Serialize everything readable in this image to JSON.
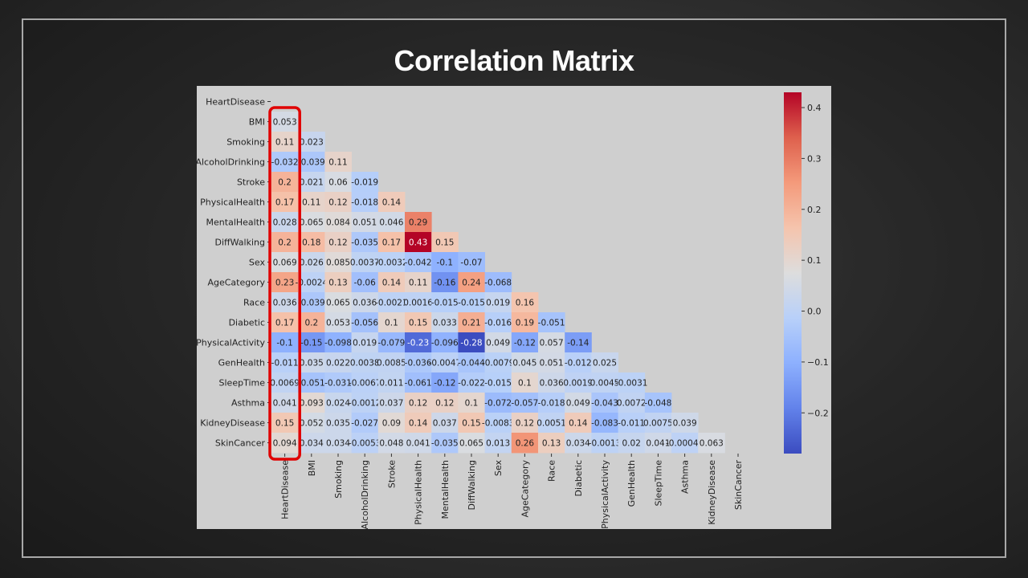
{
  "slide": {
    "title": "Correlation Matrix"
  },
  "chart_data": {
    "type": "heatmap",
    "title": "Correlation Matrix",
    "mask": "upper-triangle",
    "variables": [
      "HeartDisease",
      "BMI",
      "Smoking",
      "AlcoholDrinking",
      "Stroke",
      "PhysicalHealth",
      "MentalHealth",
      "DiffWalking",
      "Sex",
      "AgeCategory",
      "Race",
      "Diabetic",
      "PhysicalActivity",
      "GenHealth",
      "SleepTime",
      "Asthma",
      "KidneyDisease",
      "SkinCancer"
    ],
    "lower_triangle_labels": [
      [],
      [
        "0.053"
      ],
      [
        "0.11",
        "0.023"
      ],
      [
        "-0.032",
        "-0.039",
        "0.11"
      ],
      [
        "0.2",
        "0.021",
        "0.06",
        "-0.019"
      ],
      [
        "0.17",
        "0.11",
        "0.12",
        "-0.018",
        "0.14"
      ],
      [
        "0.028",
        "0.065",
        "0.084",
        "0.051",
        "0.046",
        "0.29"
      ],
      [
        "0.2",
        "0.18",
        "0.12",
        "-0.035",
        "0.17",
        "0.43",
        "0.15"
      ],
      [
        "0.069",
        "0.026",
        "0.085",
        "0.0037",
        "-0.0032",
        "-0.042",
        "-0.1",
        "-0.07"
      ],
      [
        "0.23",
        "-0.0024",
        "0.13",
        "-0.06",
        "0.14",
        "0.11",
        "-0.16",
        "0.24",
        "-0.068"
      ],
      [
        "0.036",
        "-0.039",
        "0.065",
        "0.036",
        "-0.0021",
        "0.0016",
        "-0.015",
        "-0.015",
        "0.019",
        "0.16"
      ],
      [
        "0.17",
        "0.2",
        "0.053",
        "-0.056",
        "0.1",
        "0.15",
        "0.033",
        "0.21",
        "-0.016",
        "0.19",
        "-0.051"
      ],
      [
        "-0.1",
        "-0.15",
        "-0.098",
        "0.019",
        "-0.079",
        "-0.23",
        "-0.096",
        "-0.28",
        "0.049",
        "-0.12",
        "0.057",
        "-0.14"
      ],
      [
        "-0.011",
        "0.035",
        "0.022",
        "0.0038",
        "0.0085",
        "-0.036",
        "-0.0047",
        "-0.044",
        "-0.0079",
        "0.045",
        "0.051",
        "-0.012",
        "0.025"
      ],
      [
        "0.0069",
        "-0.051",
        "-0.031",
        "-0.0067",
        "0.011",
        "-0.061",
        "-0.12",
        "-0.022",
        "-0.015",
        "0.1",
        "0.036",
        "0.0019",
        "0.0045",
        "-0.0031"
      ],
      [
        "0.041",
        "0.093",
        "0.024",
        "-0.0012",
        "0.037",
        "0.12",
        "0.12",
        "0.1",
        "-0.072",
        "-0.057",
        "-0.018",
        "0.049",
        "-0.043",
        "0.0072",
        "-0.048"
      ],
      [
        "0.15",
        "0.052",
        "0.035",
        "-0.027",
        "0.09",
        "0.14",
        "0.037",
        "0.15",
        "-0.0083",
        "0.12",
        "0.0051",
        "0.14",
        "-0.083",
        "-0.011",
        "0.0075",
        "0.039"
      ],
      [
        "0.094",
        "0.034",
        "0.034",
        "-0.0053",
        "0.048",
        "0.041",
        "-0.035",
        "0.065",
        "0.013",
        "0.26",
        "0.13",
        "0.034",
        "-0.0013",
        "0.02",
        "0.041",
        "-0.00043",
        "0.063"
      ]
    ],
    "colormap": "coolwarm",
    "colorbar": {
      "min": -0.28,
      "max": 0.43,
      "ticks": [
        -0.2,
        -0.1,
        0.0,
        0.1,
        0.2,
        0.3,
        0.4
      ],
      "tick_labels": [
        "−0.2",
        "−0.1",
        "0.0",
        "0.1",
        "0.2",
        "0.3",
        "0.4"
      ]
    },
    "highlight": {
      "column": "HeartDisease",
      "color": "#e00000"
    }
  }
}
